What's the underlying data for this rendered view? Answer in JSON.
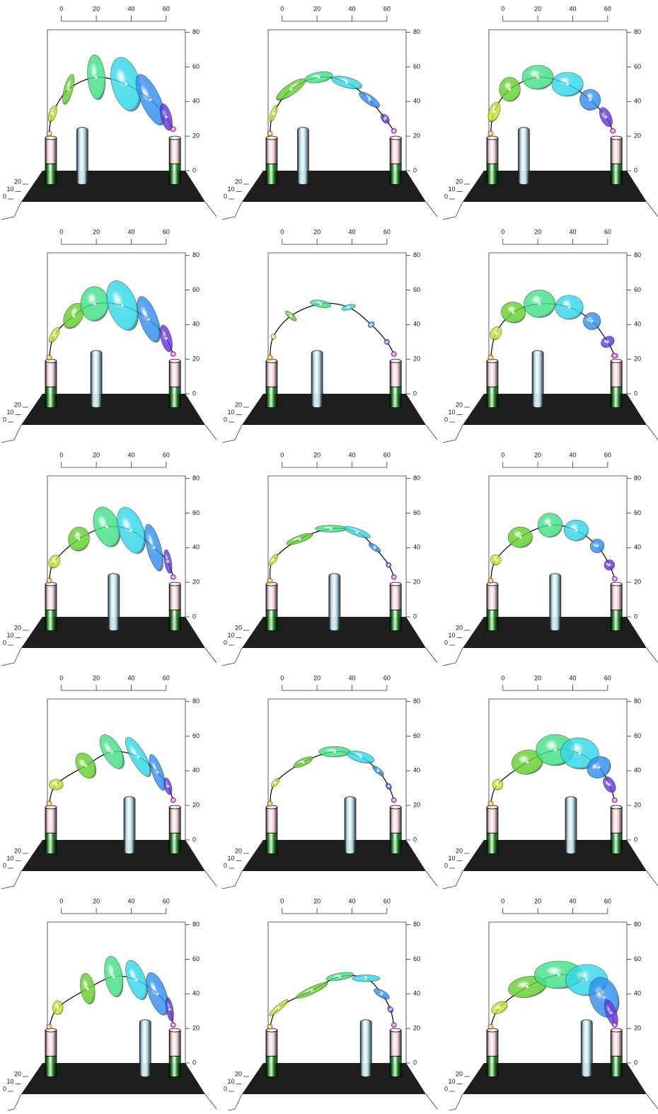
{
  "chart_data": {
    "type": "scene-grid",
    "xlim": [
      -8,
      71
    ],
    "zlim": [
      0,
      81.5
    ],
    "xticks": [
      0,
      20,
      40,
      60
    ],
    "zticks": [
      0,
      20,
      40,
      60,
      80
    ],
    "depth_ticks": [
      0,
      10,
      20
    ],
    "post_x": [
      -6,
      65
    ],
    "post_z": [
      -8,
      4,
      19
    ],
    "obstacle_z": [
      -8,
      25
    ],
    "colors": [
      "#f0a010",
      "#c8e030",
      "#66d030",
      "#44e088",
      "#34d8ea",
      "#3490f0",
      "#6838e0",
      "#e024e0"
    ],
    "post_colors": [
      "#f2c4cc",
      "#138a1a"
    ],
    "obstacle_color": "#a9d6e2",
    "floor_color": "#1e1e1e",
    "curve_color": "#000000",
    "panels": [
      {
        "obstacle_x": 12,
        "x": [
          -7,
          -5,
          4,
          20,
          37,
          51,
          60,
          64
        ],
        "z": [
          21.5,
          33,
          47,
          54,
          50,
          41,
          31,
          24
        ],
        "rx": [
          1.5,
          2,
          2.5,
          5,
          8,
          5.5,
          3,
          1.5
        ],
        "rz": [
          1.5,
          5,
          9,
          13,
          16,
          16,
          8,
          1.5
        ],
        "angle": [
          0,
          20,
          15,
          -5,
          -15,
          -25,
          -15,
          0
        ]
      },
      {
        "obstacle_x": 12,
        "x": [
          -7,
          -5,
          5,
          21,
          37,
          50,
          59,
          64
        ],
        "z": [
          21.5,
          33,
          47,
          54,
          51,
          41,
          30,
          23
        ],
        "rx": [
          1.5,
          1.5,
          3,
          8,
          9,
          7,
          3,
          1.5
        ],
        "rz": [
          1.5,
          5,
          10,
          3,
          3,
          2.5,
          2,
          1.5
        ],
        "angle": [
          0,
          20,
          55,
          -10,
          15,
          35,
          50,
          0
        ]
      },
      {
        "obstacle_x": 12,
        "x": [
          -7,
          -5,
          4,
          20,
          37,
          50,
          59,
          63
        ],
        "z": [
          21.5,
          34,
          47,
          54,
          50,
          41,
          31,
          23
        ],
        "rx": [
          1.5,
          3,
          6,
          9,
          9,
          6,
          3,
          1.5
        ],
        "rz": [
          1.5,
          6,
          7,
          7,
          7,
          6,
          6,
          1.5
        ],
        "angle": [
          0,
          20,
          0,
          0,
          0,
          30,
          -25,
          0
        ]
      },
      {
        "obstacle_x": 20,
        "x": [
          -7,
          -4,
          7,
          19,
          35,
          50,
          60,
          64
        ],
        "z": [
          21,
          34,
          45,
          52,
          51,
          43,
          32,
          23
        ],
        "rx": [
          1.5,
          2,
          5,
          8,
          8,
          5,
          3,
          1.5
        ],
        "rz": [
          1.5,
          5,
          8,
          10,
          15,
          14,
          8,
          1.5
        ],
        "angle": [
          0,
          30,
          30,
          0,
          -20,
          -20,
          -15,
          0
        ]
      },
      {
        "obstacle_x": 20,
        "x": [
          -7,
          -5,
          5,
          22,
          38,
          51,
          60,
          64
        ],
        "z": [
          21,
          33,
          45,
          52,
          50,
          40,
          30,
          23
        ],
        "rx": [
          1.5,
          1.5,
          4,
          6,
          4,
          2,
          1.5,
          1.5
        ],
        "rz": [
          1.5,
          1.5,
          1.5,
          2,
          1.5,
          1.5,
          1.5,
          1.5
        ],
        "angle": [
          0,
          60,
          40,
          10,
          -15,
          -40,
          -55,
          0
        ]
      },
      {
        "obstacle_x": 20,
        "x": [
          -7,
          -4,
          6,
          21,
          38,
          51,
          60,
          64
        ],
        "z": [
          21,
          35,
          47,
          52,
          50,
          42,
          30,
          22
        ],
        "rx": [
          1.5,
          3,
          7,
          9,
          8,
          5,
          4,
          2
        ],
        "rz": [
          1.5,
          4,
          6,
          8,
          7,
          5,
          3,
          1.5
        ],
        "angle": [
          0,
          30,
          10,
          0,
          0,
          -20,
          -30,
          0
        ]
      },
      {
        "obstacle_x": 30,
        "x": [
          -7,
          -4,
          10,
          26,
          40,
          53,
          61,
          64
        ],
        "z": [
          21,
          32,
          45,
          52,
          50,
          40,
          32,
          23
        ],
        "rx": [
          1.5,
          3,
          6,
          7,
          7,
          4,
          2,
          1.5
        ],
        "rz": [
          1.5,
          4,
          7,
          12,
          14,
          14,
          7,
          1.5
        ],
        "angle": [
          0,
          30,
          10,
          -20,
          -20,
          -15,
          -10,
          0
        ]
      },
      {
        "obstacle_x": 30,
        "x": [
          -7,
          -5,
          10,
          28,
          43,
          53,
          61,
          64
        ],
        "z": [
          21,
          33,
          45,
          51,
          49,
          40,
          30,
          23
        ],
        "rx": [
          1.5,
          4,
          8,
          9,
          8,
          4,
          1.5,
          1.5
        ],
        "rz": [
          1.5,
          1.5,
          2,
          2,
          2,
          1.5,
          1.5,
          1.5
        ],
        "angle": [
          0,
          -55,
          -20,
          0,
          20,
          35,
          55,
          0
        ]
      },
      {
        "obstacle_x": 30,
        "x": [
          -7,
          -4,
          10,
          27,
          42,
          54,
          61,
          64
        ],
        "z": [
          21,
          33,
          46,
          53,
          50,
          41,
          30,
          22
        ],
        "rx": [
          1.5,
          3,
          7,
          7,
          7,
          4,
          3,
          1.5
        ],
        "rz": [
          1.5,
          3,
          6,
          7,
          6,
          4,
          3,
          1.5
        ],
        "angle": [
          0,
          30,
          0,
          0,
          0,
          -20,
          -30,
          0
        ]
      },
      {
        "obstacle_x": 39,
        "x": [
          -7,
          -3,
          14,
          29,
          44,
          55,
          61,
          64
        ],
        "z": [
          21,
          32,
          43,
          51,
          48,
          39,
          31,
          23
        ],
        "rx": [
          1.5,
          4,
          5,
          5,
          4,
          3,
          2,
          1.5
        ],
        "rz": [
          1.5,
          3,
          8,
          11,
          13,
          11,
          5,
          1.5
        ],
        "angle": [
          0,
          0,
          -30,
          -30,
          -30,
          -20,
          -15,
          0
        ]
      },
      {
        "obstacle_x": 39,
        "x": [
          -7,
          -4,
          12,
          30,
          45,
          55,
          61,
          64
        ],
        "z": [
          21,
          33,
          45,
          51,
          48,
          40,
          31,
          23
        ],
        "rx": [
          1.5,
          3,
          6,
          9,
          8,
          4,
          2,
          1.5
        ],
        "rz": [
          1.5,
          1.5,
          2,
          3,
          3,
          1.5,
          1.5,
          1.5
        ],
        "angle": [
          0,
          -50,
          -25,
          0,
          15,
          40,
          50,
          0
        ]
      },
      {
        "obstacle_x": 39,
        "x": [
          -7,
          -3,
          14,
          30,
          44,
          55,
          61,
          64
        ],
        "z": [
          21,
          32,
          45,
          52,
          50,
          42,
          32,
          23
        ],
        "rx": [
          1.5,
          3,
          9,
          11,
          11,
          7,
          3,
          1.5
        ],
        "rz": [
          1.5,
          3,
          7,
          9,
          9,
          6,
          5,
          1.5
        ],
        "angle": [
          0,
          20,
          -10,
          0,
          10,
          -30,
          -30,
          0
        ]
      },
      {
        "obstacle_x": 48,
        "x": [
          -7,
          -2,
          15,
          30,
          43,
          55,
          62,
          64
        ],
        "z": [
          21,
          32,
          43,
          50,
          48,
          40,
          31,
          22
        ],
        "rx": [
          1.5,
          3,
          4,
          5,
          5,
          5,
          2,
          1.5
        ],
        "rz": [
          1.5,
          4,
          9,
          12,
          12,
          13,
          7,
          1.5
        ],
        "angle": [
          0,
          0,
          -10,
          -10,
          -20,
          -20,
          -10,
          0
        ]
      },
      {
        "obstacle_x": 48,
        "x": [
          -7,
          -2,
          17,
          33,
          48,
          57,
          62,
          64
        ],
        "z": [
          21,
          32,
          42,
          50,
          49,
          40,
          31,
          22
        ],
        "rx": [
          1.5,
          7,
          10,
          8,
          8,
          5,
          2,
          1.5
        ],
        "rz": [
          1.5,
          1.5,
          2,
          2,
          2,
          2,
          1.5,
          1.5
        ],
        "angle": [
          0,
          -40,
          -25,
          -10,
          0,
          30,
          60,
          0
        ]
      },
      {
        "obstacle_x": 48,
        "x": [
          -7,
          -2,
          14,
          32,
          48,
          58,
          62,
          64
        ],
        "z": [
          21,
          32,
          44,
          51,
          48,
          38,
          29,
          22
        ],
        "rx": [
          1.5,
          5,
          11,
          14,
          12,
          8,
          3,
          1.5
        ],
        "rz": [
          1.5,
          3,
          6,
          8,
          9,
          12,
          8,
          1.5
        ],
        "angle": [
          0,
          -30,
          -10,
          0,
          0,
          -20,
          -20,
          0
        ]
      }
    ]
  }
}
